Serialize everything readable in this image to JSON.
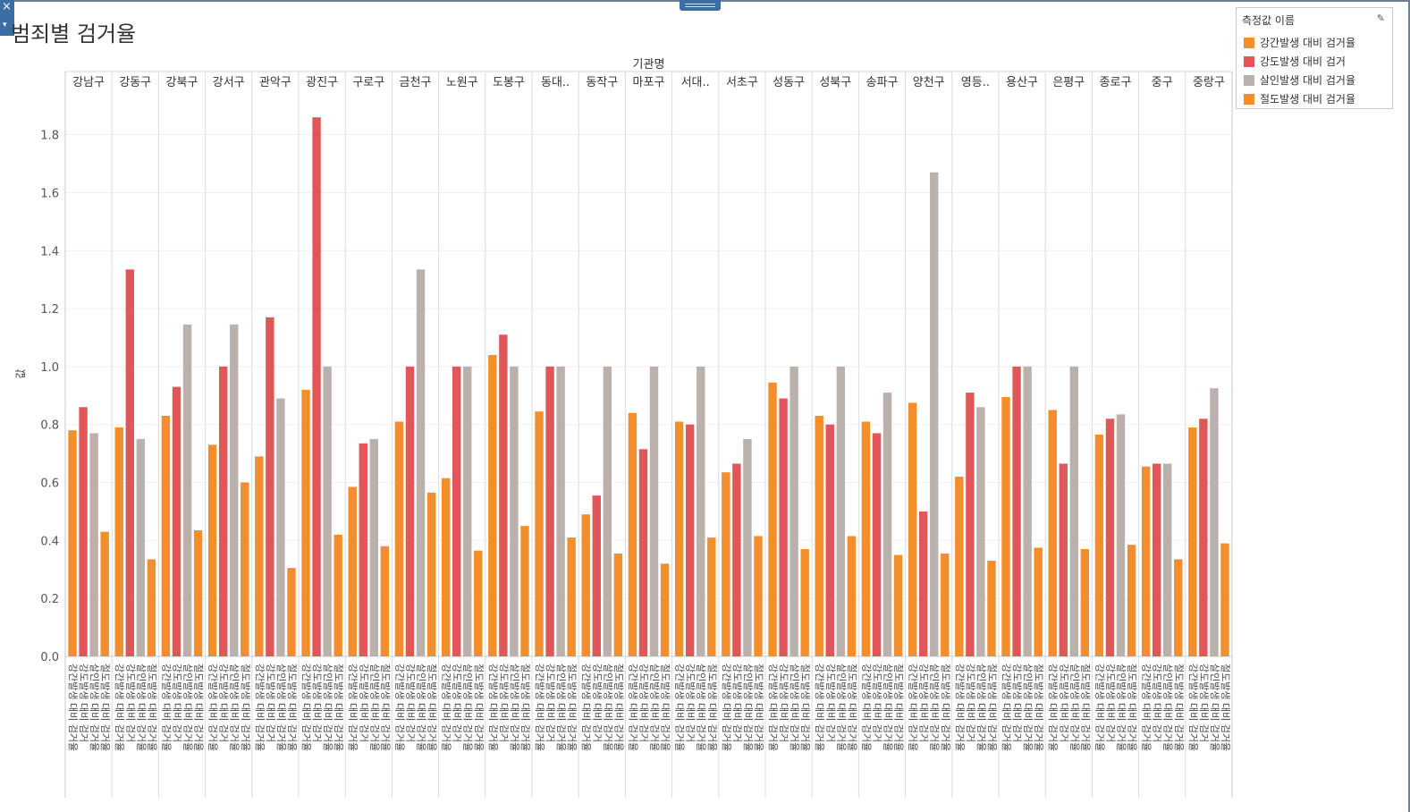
{
  "title": "범죄별 검거율",
  "window": {
    "close_glyph": "×",
    "menu_glyph": "▾"
  },
  "legend": {
    "title": "측정값 이름",
    "edit_icon": "pencil-icon",
    "items": [
      {
        "label": "강간발생 대비 검거율",
        "color": "#f28e2b"
      },
      {
        "label": "강도발생 대비 검거",
        "color": "#e15759"
      },
      {
        "label": "살인발생 대비 검거율",
        "color": "#bab0ac"
      },
      {
        "label": "절도발생 대비 검거율",
        "color": "#f28e2b"
      }
    ]
  },
  "chart_data": {
    "type": "bar",
    "title": "범죄별 검거율",
    "column_header": "기관명",
    "ylabel": "값",
    "ylim": [
      0,
      1.95
    ],
    "yticks": [
      0.0,
      0.2,
      0.4,
      0.6,
      0.8,
      1.0,
      1.2,
      1.4,
      1.6,
      1.8
    ],
    "ytick_labels": [
      "0.0",
      "0.2",
      "0.4",
      "0.6",
      "0.8",
      "1.0",
      "1.2",
      "1.4",
      "1.6",
      "1.8"
    ],
    "grid": true,
    "legend_position": "top-right",
    "categories": [
      "강남구",
      "강동구",
      "강북구",
      "강서구",
      "관악구",
      "광진구",
      "구로구",
      "금천구",
      "노원구",
      "도봉구",
      "동대..",
      "동작구",
      "마포구",
      "서대..",
      "서초구",
      "성동구",
      "성북구",
      "송파구",
      "양천구",
      "영등..",
      "용산구",
      "은평구",
      "종로구",
      "중구",
      "중랑구"
    ],
    "sub_categories": [
      "강간발생 대비 검거율",
      "강도발생 대비 검거",
      "살인발생 대비 검거율",
      "절도발생 대비 검거율"
    ],
    "series": [
      {
        "name": "강간발생 대비 검거율",
        "color": "#f28e2b",
        "values": [
          0.78,
          0.79,
          0.83,
          0.73,
          0.69,
          0.92,
          0.585,
          0.81,
          0.615,
          1.04,
          0.845,
          0.49,
          0.84,
          0.81,
          0.635,
          0.945,
          0.83,
          0.81,
          0.875,
          0.62,
          0.895,
          0.85,
          0.765,
          0.655,
          0.79
        ]
      },
      {
        "name": "강도발생 대비 검거",
        "color": "#e15759",
        "values": [
          0.86,
          1.335,
          0.93,
          1.0,
          1.17,
          1.86,
          0.735,
          1.0,
          1.0,
          1.11,
          1.0,
          0.555,
          0.715,
          0.8,
          0.665,
          0.89,
          0.8,
          0.77,
          0.5,
          0.91,
          1.0,
          0.665,
          0.82,
          0.665,
          0.82
        ]
      },
      {
        "name": "살인발생 대비 검거율",
        "color": "#bab0ac",
        "values": [
          0.77,
          0.75,
          1.145,
          1.145,
          0.89,
          1.0,
          0.75,
          1.335,
          1.0,
          1.0,
          1.0,
          1.0,
          1.0,
          1.0,
          0.75,
          1.0,
          1.0,
          0.91,
          1.67,
          0.86,
          1.0,
          1.0,
          0.835,
          0.665,
          0.925
        ]
      },
      {
        "name": "절도발생 대비 검거율",
        "color": "#f28e2b",
        "values": [
          0.43,
          0.335,
          0.435,
          0.6,
          0.305,
          0.42,
          0.38,
          0.565,
          0.365,
          0.45,
          0.41,
          0.355,
          0.32,
          0.41,
          0.415,
          0.37,
          0.415,
          0.35,
          0.355,
          0.33,
          0.375,
          0.37,
          0.385,
          0.335,
          0.39
        ]
      }
    ]
  }
}
